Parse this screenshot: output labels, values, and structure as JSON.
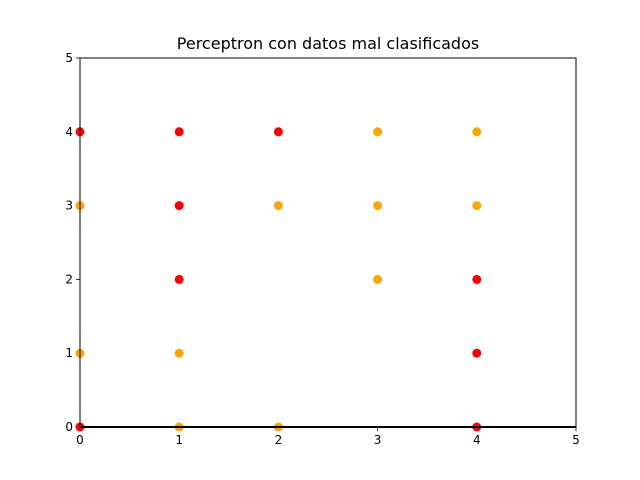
{
  "chart_data": {
    "type": "scatter",
    "title": "Perceptron con datos mal clasificados",
    "xlabel": "",
    "ylabel": "",
    "xlim": [
      0,
      5
    ],
    "ylim": [
      0,
      5
    ],
    "x_ticks": [
      "0",
      "1",
      "2",
      "3",
      "4",
      "5"
    ],
    "y_ticks": [
      "0",
      "1",
      "2",
      "3",
      "4",
      "5"
    ],
    "grid": false,
    "colors": {
      "red": "#ff0000",
      "orange": "#ffa500",
      "line": "#000000"
    },
    "points": [
      {
        "x": 0,
        "y": 4,
        "color": "red"
      },
      {
        "x": 1,
        "y": 4,
        "color": "red"
      },
      {
        "x": 2,
        "y": 4,
        "color": "red"
      },
      {
        "x": 3,
        "y": 4,
        "color": "orange"
      },
      {
        "x": 4,
        "y": 4,
        "color": "orange"
      },
      {
        "x": 0,
        "y": 3,
        "color": "orange"
      },
      {
        "x": 1,
        "y": 3,
        "color": "red"
      },
      {
        "x": 2,
        "y": 3,
        "color": "orange"
      },
      {
        "x": 3,
        "y": 3,
        "color": "orange"
      },
      {
        "x": 4,
        "y": 3,
        "color": "orange"
      },
      {
        "x": 1,
        "y": 2,
        "color": "red"
      },
      {
        "x": 3,
        "y": 2,
        "color": "orange"
      },
      {
        "x": 4,
        "y": 2,
        "color": "red"
      },
      {
        "x": 0,
        "y": 1,
        "color": "orange"
      },
      {
        "x": 1,
        "y": 1,
        "color": "orange"
      },
      {
        "x": 4,
        "y": 1,
        "color": "red"
      },
      {
        "x": 0,
        "y": 0,
        "color": "red"
      },
      {
        "x": 1,
        "y": 0,
        "color": "orange"
      },
      {
        "x": 2,
        "y": 0,
        "color": "orange"
      },
      {
        "x": 4,
        "y": 0,
        "color": "red"
      }
    ],
    "lines": [
      {
        "x": [
          0,
          5
        ],
        "y": [
          0,
          0
        ],
        "color": "line"
      }
    ]
  }
}
